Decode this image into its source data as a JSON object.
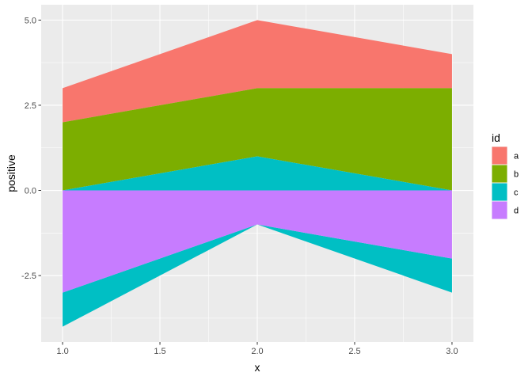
{
  "chart_data": {
    "type": "area",
    "title": "",
    "xlabel": "x",
    "ylabel": "positive",
    "x": [
      1.0,
      2.0,
      3.0
    ],
    "xlim": [
      0.89,
      3.11
    ],
    "ylim": [
      -4.45,
      5.45
    ],
    "x_ticks": [
      1.0,
      1.5,
      2.0,
      2.5,
      3.0
    ],
    "x_tick_labels": [
      "1.0",
      "1.5",
      "2.0",
      "2.5",
      "3.0"
    ],
    "y_ticks": [
      -2.5,
      0.0,
      2.5,
      5.0
    ],
    "y_tick_labels": [
      "-2.5",
      "0.0",
      "2.5",
      "5.0"
    ],
    "grid": true,
    "legend": {
      "title": "id",
      "position": "right"
    },
    "series": [
      {
        "name": "a",
        "color": "#F8766D",
        "lower": [
          2,
          3,
          3
        ],
        "upper": [
          3,
          5,
          4
        ]
      },
      {
        "name": "b",
        "color": "#7CAE00",
        "lower": [
          0,
          1,
          0
        ],
        "upper": [
          2,
          3,
          3
        ]
      },
      {
        "name": "c",
        "color": "#00BFC4",
        "lower": [
          0,
          0,
          0
        ],
        "upper": [
          0,
          1,
          0
        ],
        "lower_neg": [
          -4,
          -1,
          -3
        ],
        "upper_neg": [
          -3,
          -1,
          -2
        ]
      },
      {
        "name": "d",
        "color": "#C77CFF",
        "lower": [
          -3,
          -1,
          -2
        ],
        "upper": [
          0,
          0,
          0
        ]
      }
    ]
  }
}
